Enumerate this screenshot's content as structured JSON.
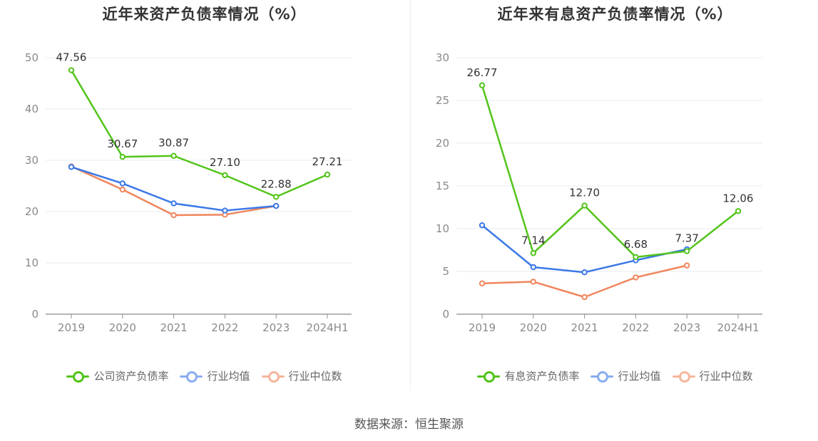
{
  "chart_data": [
    {
      "type": "line",
      "title": "近年来资产负债率情况（%）",
      "categories": [
        "2019",
        "2020",
        "2021",
        "2022",
        "2023",
        "2024H1"
      ],
      "ylim": [
        0,
        50
      ],
      "yticks": [
        0,
        10,
        20,
        30,
        40,
        50
      ],
      "grid": true,
      "legend_position": "bottom",
      "series": [
        {
          "name": "公司资产负债率",
          "color": "#52c41a",
          "values": [
            47.56,
            30.67,
            30.87,
            27.1,
            22.88,
            27.21
          ],
          "labels": [
            "47.56",
            "30.67",
            "30.87",
            "27.10",
            "22.88",
            "27.21"
          ]
        },
        {
          "name": "行业均值",
          "color": "#3b78e7",
          "values": [
            28.7,
            25.5,
            21.6,
            20.2,
            21.1,
            null
          ]
        },
        {
          "name": "行业中位数",
          "color": "#f0865d",
          "values": [
            28.8,
            24.3,
            19.3,
            19.4,
            21.1,
            null
          ]
        }
      ]
    },
    {
      "type": "line",
      "title": "近年来有息资产负债率情况（%）",
      "categories": [
        "2019",
        "2020",
        "2021",
        "2022",
        "2023",
        "2024H1"
      ],
      "ylim": [
        0,
        30
      ],
      "yticks": [
        0,
        5,
        10,
        15,
        20,
        25,
        30
      ],
      "grid": true,
      "legend_position": "bottom",
      "series": [
        {
          "name": "有息资产负债率",
          "color": "#52c41a",
          "values": [
            26.77,
            7.14,
            12.7,
            6.68,
            7.37,
            12.06
          ],
          "labels": [
            "26.77",
            "7.14",
            "12.70",
            "6.68",
            "7.37",
            "12.06"
          ]
        },
        {
          "name": "行业均值",
          "color": "#3b78e7",
          "values": [
            10.4,
            5.5,
            4.9,
            6.3,
            7.6,
            null
          ]
        },
        {
          "name": "行业中位数",
          "color": "#f0865d",
          "values": [
            3.6,
            3.8,
            2.0,
            4.3,
            5.7,
            null
          ]
        }
      ]
    }
  ],
  "source": "数据来源：恒生聚源"
}
